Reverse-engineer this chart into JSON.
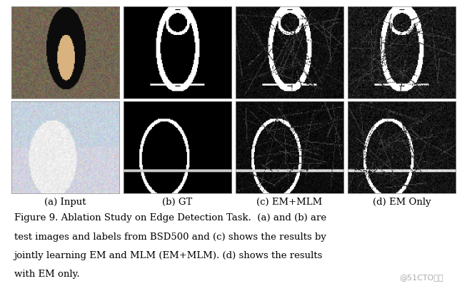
{
  "figure_width": 6.54,
  "figure_height": 4.02,
  "dpi": 100,
  "background_color": "#ffffff",
  "num_rows": 2,
  "num_cols": 4,
  "col_labels": [
    "(a) Input",
    "(b) GT",
    "(c) EM+MLM",
    "(d) EM Only"
  ],
  "caption_lines": [
    "Figure 9. Ablation Study on Edge Detection Task.  (a) and (b) are",
    "test images and labels from BSD500 and (c) shows the results by",
    "jointly learning EM and MLM (EM+MLM). (d) shows the results",
    "with EM only."
  ],
  "watermark": "@51CTO博客",
  "caption_fontsize": 9.5,
  "label_fontsize": 9.5,
  "watermark_fontsize": 8,
  "image_colors_row0": [
    "color",
    "dark_edge",
    "dark_edge_noisy",
    "dark_edge_noisy2"
  ],
  "image_colors_row1": [
    "color2",
    "dark_edge2",
    "dark_edge_noisy3",
    "dark_edge_noisy4"
  ]
}
